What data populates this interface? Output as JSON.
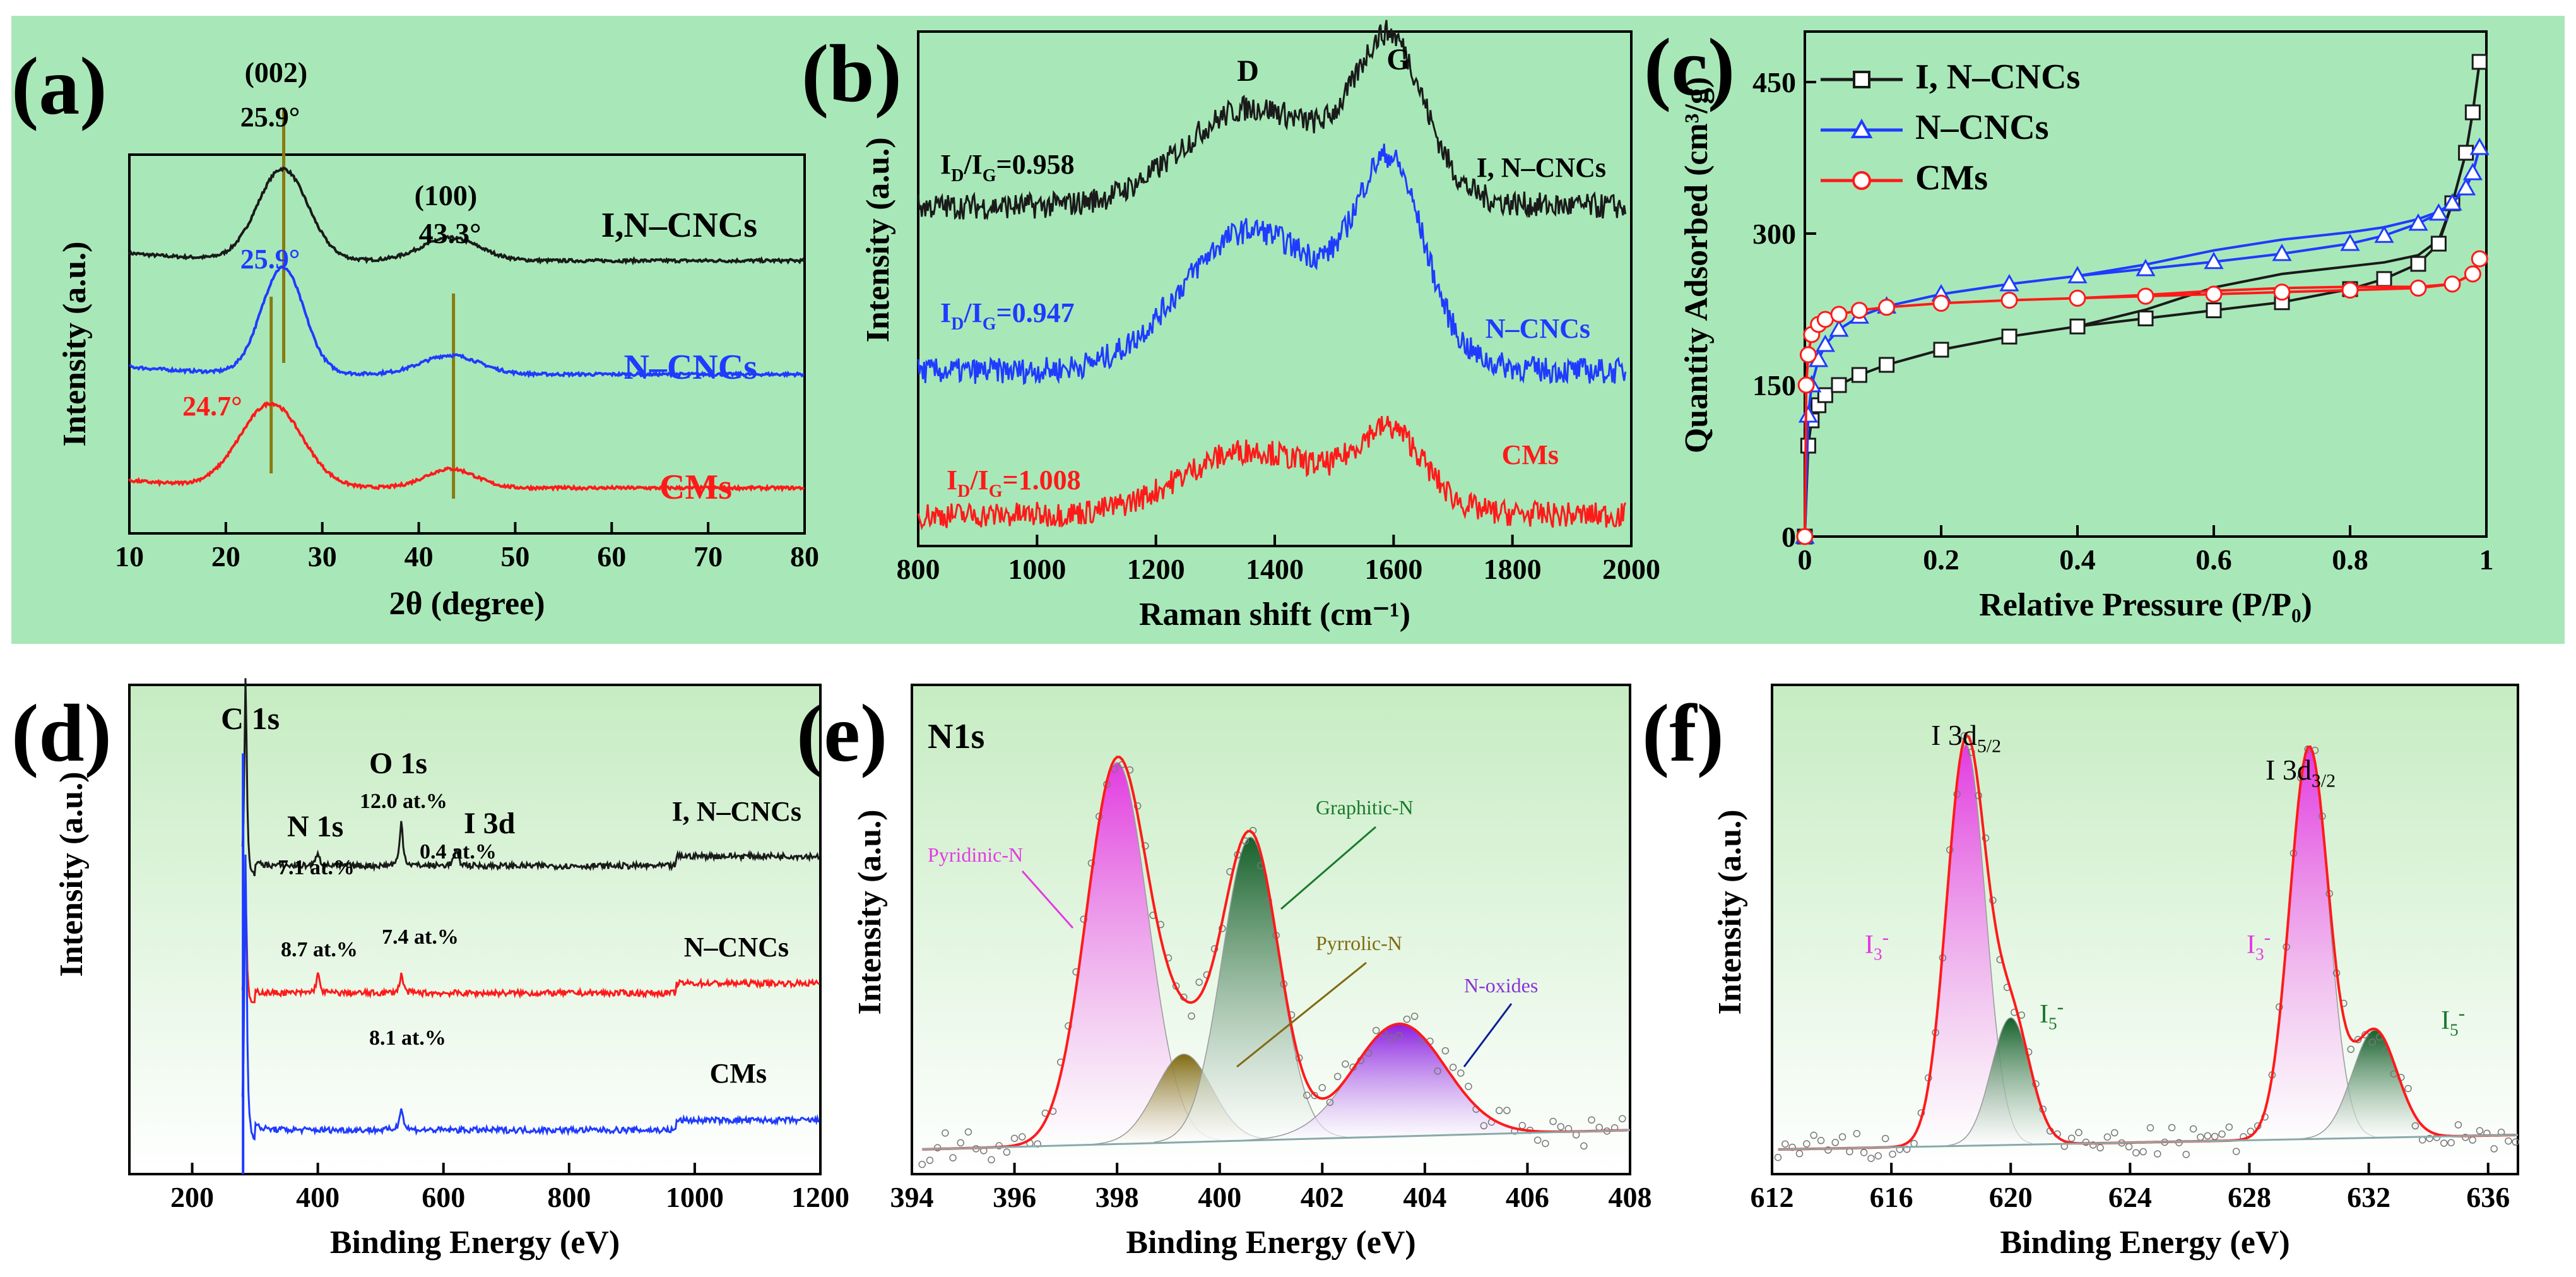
{
  "colors": {
    "top_panel_bg": "#a8e8b8",
    "bottom_gradient_top": "#cdeec9",
    "bottom_gradient_bottom": "#ffffff",
    "black": "#1a1a1a",
    "blue": "#1f3bff",
    "red": "#ff1a1a",
    "olive": "#7f6a10",
    "pink": "#e33be0",
    "green": "#1a7a2e",
    "purple": "#8a33d6",
    "navy": "#0a1f9a"
  },
  "chart_data": [
    {
      "id": "a",
      "panel_label": "(a)",
      "type": "line",
      "xlabel": "2θ (degree)",
      "ylabel": "Intensity (a.u.)",
      "xlim": [
        10,
        80
      ],
      "xticks": [
        10,
        20,
        30,
        40,
        50,
        60,
        70,
        80
      ],
      "series": [
        {
          "name": "I,N–CNCs",
          "color": "black",
          "baseline": 0.72,
          "peaks": [
            {
              "x": 25.9,
              "h": 0.24,
              "w": 2.6
            },
            {
              "x": 43.3,
              "h": 0.06,
              "w": 3.0
            }
          ]
        },
        {
          "name": "N–CNCs",
          "color": "blue",
          "baseline": 0.42,
          "peaks": [
            {
              "x": 25.9,
              "h": 0.28,
              "w": 2.2
            },
            {
              "x": 43.3,
              "h": 0.05,
              "w": 3.0
            }
          ]
        },
        {
          "name": "CMs",
          "color": "red",
          "baseline": 0.12,
          "peaks": [
            {
              "x": 24.7,
              "h": 0.22,
              "w": 3.2
            },
            {
              "x": 43.3,
              "h": 0.05,
              "w": 2.6
            }
          ]
        }
      ],
      "annotations": {
        "peak002": "(002)",
        "peak100": "(100)",
        "angle_inc": "25.9°",
        "angle_nc": "25.9°",
        "angle_cm": "24.7°",
        "angle_100": "43.3°"
      }
    },
    {
      "id": "b",
      "panel_label": "(b)",
      "type": "line",
      "xlabel": "Raman shift (cm⁻¹)",
      "ylabel": "Intensity (a.u.)",
      "xlim": [
        800,
        2000
      ],
      "xticks": [
        800,
        1000,
        1200,
        1400,
        1600,
        1800,
        2000
      ],
      "series": [
        {
          "name": "I, N–CNCs",
          "color": "black",
          "ratio": "0.958",
          "baseline": 0.66,
          "D": 0.18,
          "G": 0.26
        },
        {
          "name": "N–CNCs",
          "color": "blue",
          "ratio": "0.947",
          "baseline": 0.34,
          "D": 0.26,
          "G": 0.32
        },
        {
          "name": "CMs",
          "color": "red",
          "ratio": "1.008",
          "baseline": 0.06,
          "D": 0.12,
          "G": 0.13
        }
      ],
      "band_labels": {
        "D": "D",
        "G": "G"
      },
      "ratio_prefix": "I",
      "ratio_subD": "D",
      "ratio_subG": "G",
      "ratio_sep": "/I"
    },
    {
      "id": "c",
      "panel_label": "(c)",
      "type": "line",
      "xlabel": "Relative Pressure (P/P₀)",
      "ylabel": "Quantity Adsorbed (cm³/g)",
      "xlim": [
        0.0,
        1.0
      ],
      "xticks": [
        0.0,
        0.2,
        0.4,
        0.6,
        0.8,
        1.0
      ],
      "ylim": [
        0,
        500
      ],
      "yticks": [
        0,
        150,
        300,
        450
      ],
      "series": [
        {
          "name": "I, N–CNCs",
          "color": "black",
          "marker": "square",
          "x": [
            0.0,
            0.005,
            0.01,
            0.02,
            0.03,
            0.05,
            0.08,
            0.12,
            0.2,
            0.3,
            0.4,
            0.5,
            0.6,
            0.7,
            0.8,
            0.85,
            0.9,
            0.93,
            0.95,
            0.97,
            0.98,
            0.99
          ],
          "y": [
            0,
            90,
            115,
            130,
            140,
            150,
            160,
            170,
            185,
            198,
            208,
            216,
            224,
            232,
            245,
            255,
            270,
            290,
            330,
            380,
            420,
            470
          ]
        },
        {
          "name": "N–CNCs",
          "color": "blue",
          "marker": "triangle",
          "x": [
            0.0,
            0.005,
            0.01,
            0.02,
            0.03,
            0.05,
            0.08,
            0.12,
            0.2,
            0.3,
            0.4,
            0.5,
            0.6,
            0.7,
            0.8,
            0.85,
            0.9,
            0.93,
            0.95,
            0.97,
            0.98,
            0.99
          ],
          "y": [
            0,
            120,
            150,
            175,
            190,
            205,
            218,
            228,
            240,
            250,
            258,
            265,
            272,
            280,
            290,
            298,
            310,
            320,
            330,
            345,
            360,
            385
          ]
        },
        {
          "name": "CMs",
          "color": "red",
          "marker": "circle",
          "x": [
            0.0,
            0.002,
            0.005,
            0.01,
            0.02,
            0.03,
            0.05,
            0.08,
            0.12,
            0.2,
            0.3,
            0.4,
            0.5,
            0.6,
            0.7,
            0.8,
            0.9,
            0.95,
            0.98,
            0.99
          ],
          "y": [
            0,
            150,
            180,
            200,
            210,
            215,
            220,
            224,
            227,
            231,
            234,
            236,
            238,
            240,
            242,
            244,
            246,
            250,
            260,
            275
          ]
        }
      ]
    },
    {
      "id": "d",
      "panel_label": "(d)",
      "type": "line",
      "xlabel": "Binding Energy (eV)",
      "ylabel": "Intensity (a.u.)",
      "xlim": [
        100,
        1200
      ],
      "xticks": [
        200,
        400,
        600,
        800,
        1000,
        1200
      ],
      "series": [
        {
          "name": "I, N–CNCs",
          "color": "black",
          "baseline": 0.6,
          "c1s": 0.42,
          "n1s": 0.03,
          "o1s": 0.09,
          "i3d": 0.03
        },
        {
          "name": "N–CNCs",
          "color": "red",
          "baseline": 0.34,
          "c1s": 0.23,
          "n1s": 0.04,
          "o1s": 0.04,
          "i3d": 0.0
        },
        {
          "name": "CMs",
          "color": "blue",
          "baseline": 0.06,
          "c1s": 0.6,
          "n1s": 0.0,
          "o1s": 0.05,
          "i3d": 0.0
        }
      ],
      "peak_labels": {
        "c1s": "C 1s",
        "n1s": "N 1s",
        "o1s": "O 1s",
        "i3d": "I 3d"
      },
      "at_percent": {
        "n_inc": "7.1 at.%",
        "o_inc": "12.0 at.%",
        "i_inc": "0.4 at.%",
        "n_nc": "8.7 at.%",
        "o_nc": "7.4 at.%",
        "o_cm": "8.1 at.%"
      }
    },
    {
      "id": "e",
      "panel_label": "(e)",
      "type": "line",
      "title": "N1s",
      "xlabel": "Binding Energy (eV)",
      "ylabel": "Intensity (a.u.)",
      "xlim": [
        394,
        408
      ],
      "xticks": [
        394,
        396,
        398,
        400,
        402,
        404,
        406,
        408
      ],
      "components": [
        {
          "name": "Pyridinic-N",
          "center": 398.0,
          "height": 0.78,
          "sigma": 0.6,
          "color": "pink"
        },
        {
          "name": "Pyrrolic-N",
          "center": 399.3,
          "height": 0.18,
          "sigma": 0.55,
          "color": "olive"
        },
        {
          "name": "Graphitic-N",
          "center": 400.6,
          "height": 0.62,
          "sigma": 0.55,
          "color": "green"
        },
        {
          "name": "N-oxides",
          "center": 403.5,
          "height": 0.23,
          "sigma": 0.9,
          "color": "purple"
        }
      ]
    },
    {
      "id": "f",
      "panel_label": "(f)",
      "type": "line",
      "xlabel": "Binding Energy (eV)",
      "ylabel": "Intensity (a.u.)",
      "xlim": [
        612,
        637
      ],
      "xticks": [
        612,
        616,
        620,
        624,
        628,
        632,
        636
      ],
      "components": [
        {
          "name": "I3-",
          "center": 618.5,
          "height": 0.82,
          "sigma": 0.65,
          "color": "pink"
        },
        {
          "name": "I5-",
          "center": 620.0,
          "height": 0.26,
          "sigma": 0.65,
          "color": "green"
        },
        {
          "name": "I3-",
          "center": 630.0,
          "height": 0.8,
          "sigma": 0.65,
          "color": "pink"
        },
        {
          "name": "I5-",
          "center": 632.2,
          "height": 0.22,
          "sigma": 0.75,
          "color": "green"
        }
      ],
      "peak_labels": {
        "d52": "I 3d",
        "d52_sub": "5/2",
        "d32": "I 3d",
        "d32_sub": "3/2",
        "i3": "I",
        "i3_sub": "3",
        "i5": "I",
        "i5_sub": "5",
        "minus": "-"
      }
    }
  ]
}
